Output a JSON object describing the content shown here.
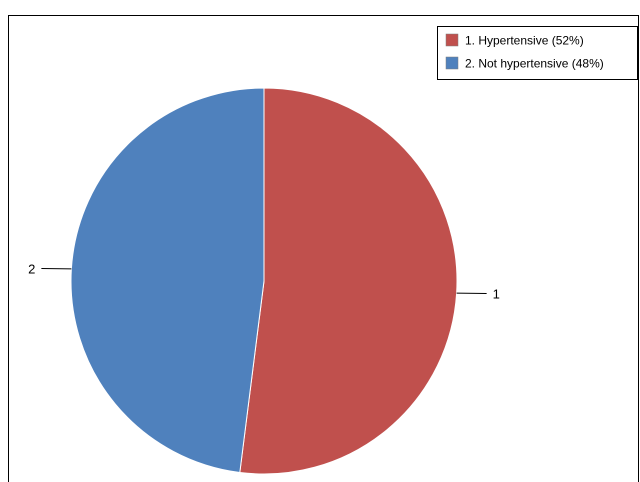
{
  "chart_data": {
    "type": "pie",
    "categories": [
      "1",
      "2"
    ],
    "values": [
      52,
      48
    ],
    "legend": [
      "1. Hypertensive (52%)",
      "2. Not hypertensive (48%)"
    ],
    "colors": [
      "#C0504D",
      "#4F81BD"
    ],
    "legend_position": "top-right"
  }
}
